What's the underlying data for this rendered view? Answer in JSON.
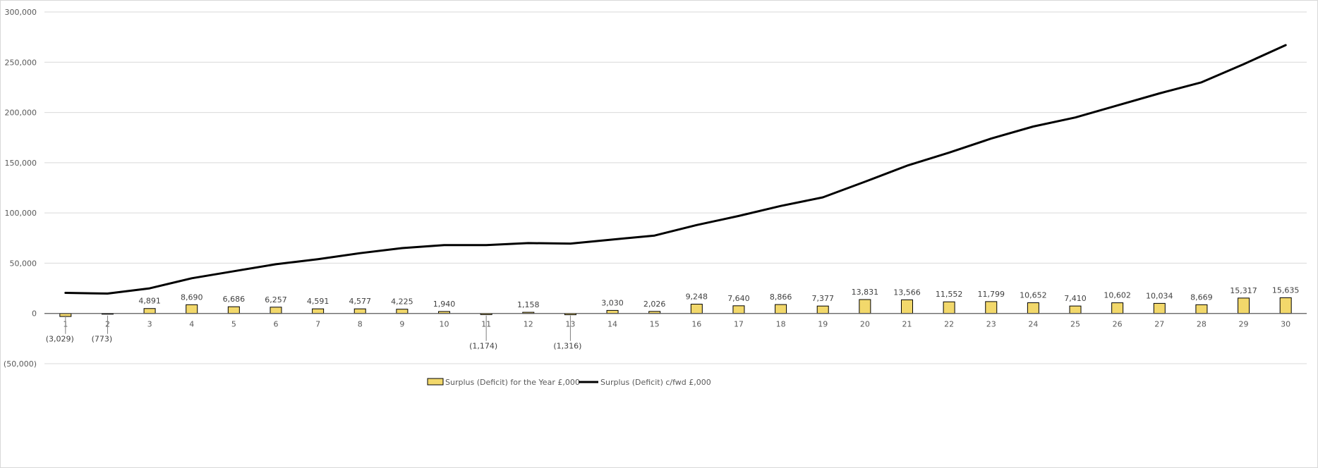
{
  "chart_data": {
    "type": "bar+line",
    "title": "",
    "xlabel": "",
    "ylabel": "",
    "ylim": [
      -50000,
      300000
    ],
    "ytick_values": [
      -50000,
      0,
      50000,
      100000,
      150000,
      200000,
      250000,
      300000
    ],
    "ytick_labels": [
      "(50,000)",
      "0",
      "50,000",
      "100,000",
      "150,000",
      "200,000",
      "250,000",
      "300,000"
    ],
    "grid": true,
    "legend_position": "bottom",
    "categories": [
      "1",
      "2",
      "3",
      "4",
      "5",
      "6",
      "7",
      "8",
      "9",
      "10",
      "11",
      "12",
      "13",
      "14",
      "15",
      "16",
      "17",
      "18",
      "19",
      "20",
      "21",
      "22",
      "23",
      "24",
      "25",
      "26",
      "27",
      "28",
      "29",
      "30"
    ],
    "series": [
      {
        "name": "Surplus (Deficit) for the Year £,000",
        "type": "bar",
        "color": "#f2d86b",
        "values": [
          -3029,
          -773,
          4891,
          8690,
          6686,
          6257,
          4591,
          4577,
          4225,
          1940,
          -1174,
          1158,
          -1316,
          3030,
          2026,
          9248,
          7640,
          8866,
          7377,
          13831,
          13566,
          11552,
          11799,
          10652,
          7410,
          10602,
          10034,
          8669,
          15317,
          15635
        ],
        "data_labels": [
          "(3,029)",
          "(773)",
          "4,891",
          "8,690",
          "6,686",
          "6,257",
          "4,591",
          "4,577",
          "4,225",
          "1,940",
          "(1,174)",
          "1,158",
          "(1,316)",
          "3,030",
          "2,026",
          "9,248",
          "7,640",
          "8,866",
          "7,377",
          "13,831",
          "13,566",
          "11,552",
          "11,799",
          "10,652",
          "7,410",
          "10,602",
          "10,034",
          "8,669",
          "15,317",
          "15,635"
        ]
      },
      {
        "name": "Surplus (Deficit) c/fwd £,000",
        "type": "line",
        "color": "#000000",
        "values": [
          20500,
          19800,
          25000,
          35000,
          42000,
          49000,
          54000,
          60000,
          65000,
          68000,
          68000,
          70000,
          69500,
          73500,
          77500,
          88000,
          97000,
          107000,
          115500,
          131000,
          147000,
          160000,
          174000,
          186000,
          195000,
          207000,
          219000,
          230000,
          248000,
          267000
        ]
      }
    ]
  }
}
